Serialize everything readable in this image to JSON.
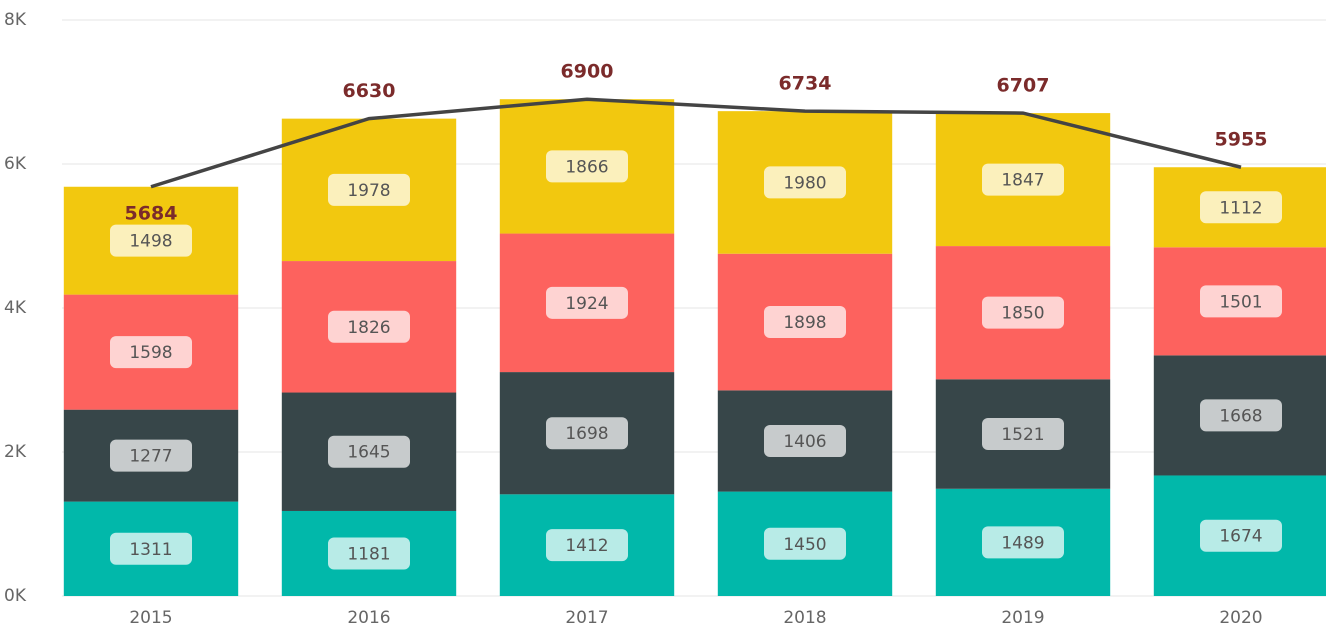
{
  "chart_data": {
    "type": "bar",
    "categories": [
      "2015",
      "2016",
      "2017",
      "2018",
      "2019",
      "2020"
    ],
    "series": [
      {
        "color": "#01b8aa",
        "values": [
          1311,
          1181,
          1412,
          1450,
          1489,
          1674
        ]
      },
      {
        "color": "#374649",
        "values": [
          1277,
          1645,
          1698,
          1406,
          1521,
          1668
        ]
      },
      {
        "color": "#fd625e",
        "values": [
          1598,
          1826,
          1924,
          1898,
          1850,
          1501
        ]
      },
      {
        "color": "#f2c80f",
        "values": [
          1498,
          1978,
          1866,
          1980,
          1847,
          1112
        ]
      }
    ],
    "line": {
      "color": "#444444",
      "values": [
        5684,
        6630,
        6900,
        6734,
        6707,
        5955
      ]
    },
    "stacked": true,
    "ylim": [
      0,
      8000
    ],
    "yticks": [
      {
        "value": 0,
        "label": "0K"
      },
      {
        "value": 2000,
        "label": "2K"
      },
      {
        "value": 4000,
        "label": "4K"
      },
      {
        "value": 6000,
        "label": "6K"
      },
      {
        "value": 8000,
        "label": "8K"
      }
    ],
    "grid": true
  }
}
